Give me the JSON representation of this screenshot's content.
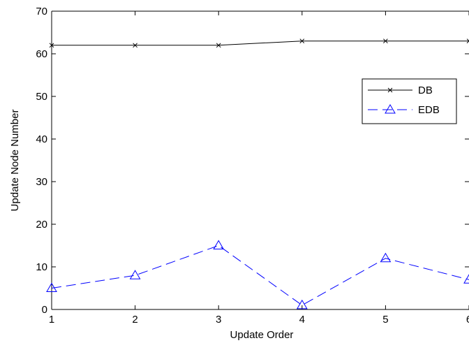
{
  "chart_data": {
    "type": "line",
    "title": "",
    "xlabel": "Update Order",
    "ylabel": "Update Node Number",
    "xlim": [
      1,
      6
    ],
    "ylim": [
      0,
      70
    ],
    "xticks": [
      "1",
      "2",
      "3",
      "4",
      "5",
      "6"
    ],
    "yticks": [
      "0",
      "10",
      "20",
      "30",
      "40",
      "50",
      "60",
      "70"
    ],
    "grid": false,
    "legend_position": "upper-right",
    "x": [
      1,
      2,
      3,
      4,
      5,
      6
    ],
    "series": [
      {
        "name": "DB",
        "values": [
          62,
          62,
          62,
          63,
          63,
          63
        ],
        "color": "#000000",
        "marker": "x",
        "line_style": "solid"
      },
      {
        "name": "EDB",
        "values": [
          5,
          8,
          15,
          1,
          12,
          7
        ],
        "color": "#0000ff",
        "marker": "triangle",
        "line_style": "dashed"
      }
    ]
  }
}
